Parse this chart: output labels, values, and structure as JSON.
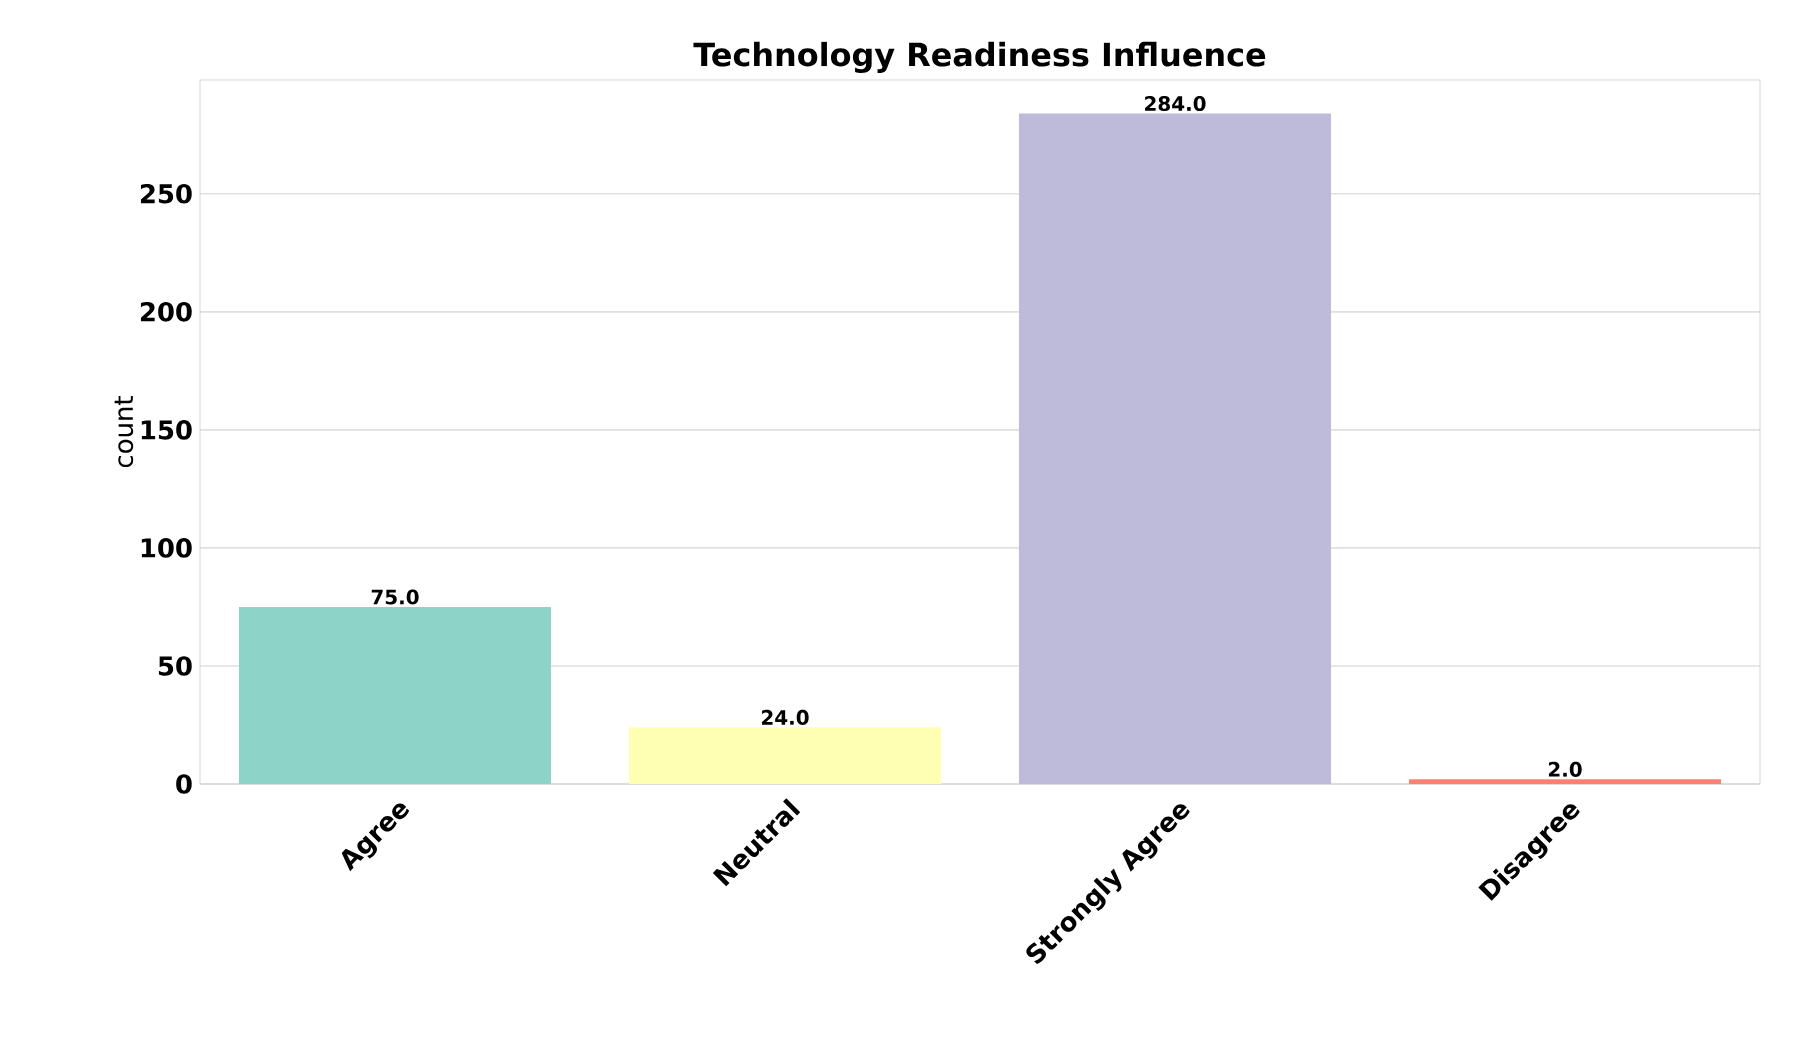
{
  "chart_data": {
    "type": "bar",
    "title": "Technology Readiness Influence",
    "ylabel": "count",
    "categories": [
      "Agree",
      "Neutral",
      "Strongly Agree",
      "Disagree"
    ],
    "values": [
      75,
      24,
      284,
      2
    ],
    "colors": [
      "#8dd3c7",
      "#ffffb3",
      "#bebada",
      "#fb8072"
    ],
    "value_labels": [
      "75.0",
      "24.0",
      "284.0",
      "2.0"
    ],
    "ylim": [
      0,
      298.2
    ],
    "yticks": [
      0,
      50,
      100,
      150,
      200,
      250
    ],
    "grid": "y"
  }
}
